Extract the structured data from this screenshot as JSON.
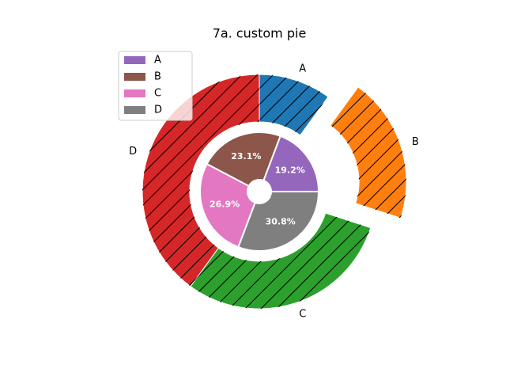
{
  "chart_data": {
    "type": "pie",
    "title": "7a. custom pie",
    "categories": [
      "A",
      "B",
      "C",
      "D"
    ],
    "rings": [
      {
        "values": [
          10,
          20,
          30,
          40
        ],
        "colors": [
          "#1f77b4",
          "#ff7f0e",
          "#2ca02c",
          "#d62728"
        ],
        "startangle": 90,
        "counterclock": false,
        "hatch": "/",
        "explode": [
          0,
          0.27,
          0,
          0
        ],
        "labels": true
      },
      {
        "values": [
          5,
          6,
          7,
          8
        ],
        "colors": [
          "#9467bd",
          "#8c564b",
          "#e377c2",
          "#7f7f7f"
        ],
        "value_labels": [
          "19.2%",
          "23.1%",
          "26.9%",
          "30.8%"
        ],
        "startangle": 0,
        "counterclock": true
      }
    ],
    "legend": "upper left"
  }
}
